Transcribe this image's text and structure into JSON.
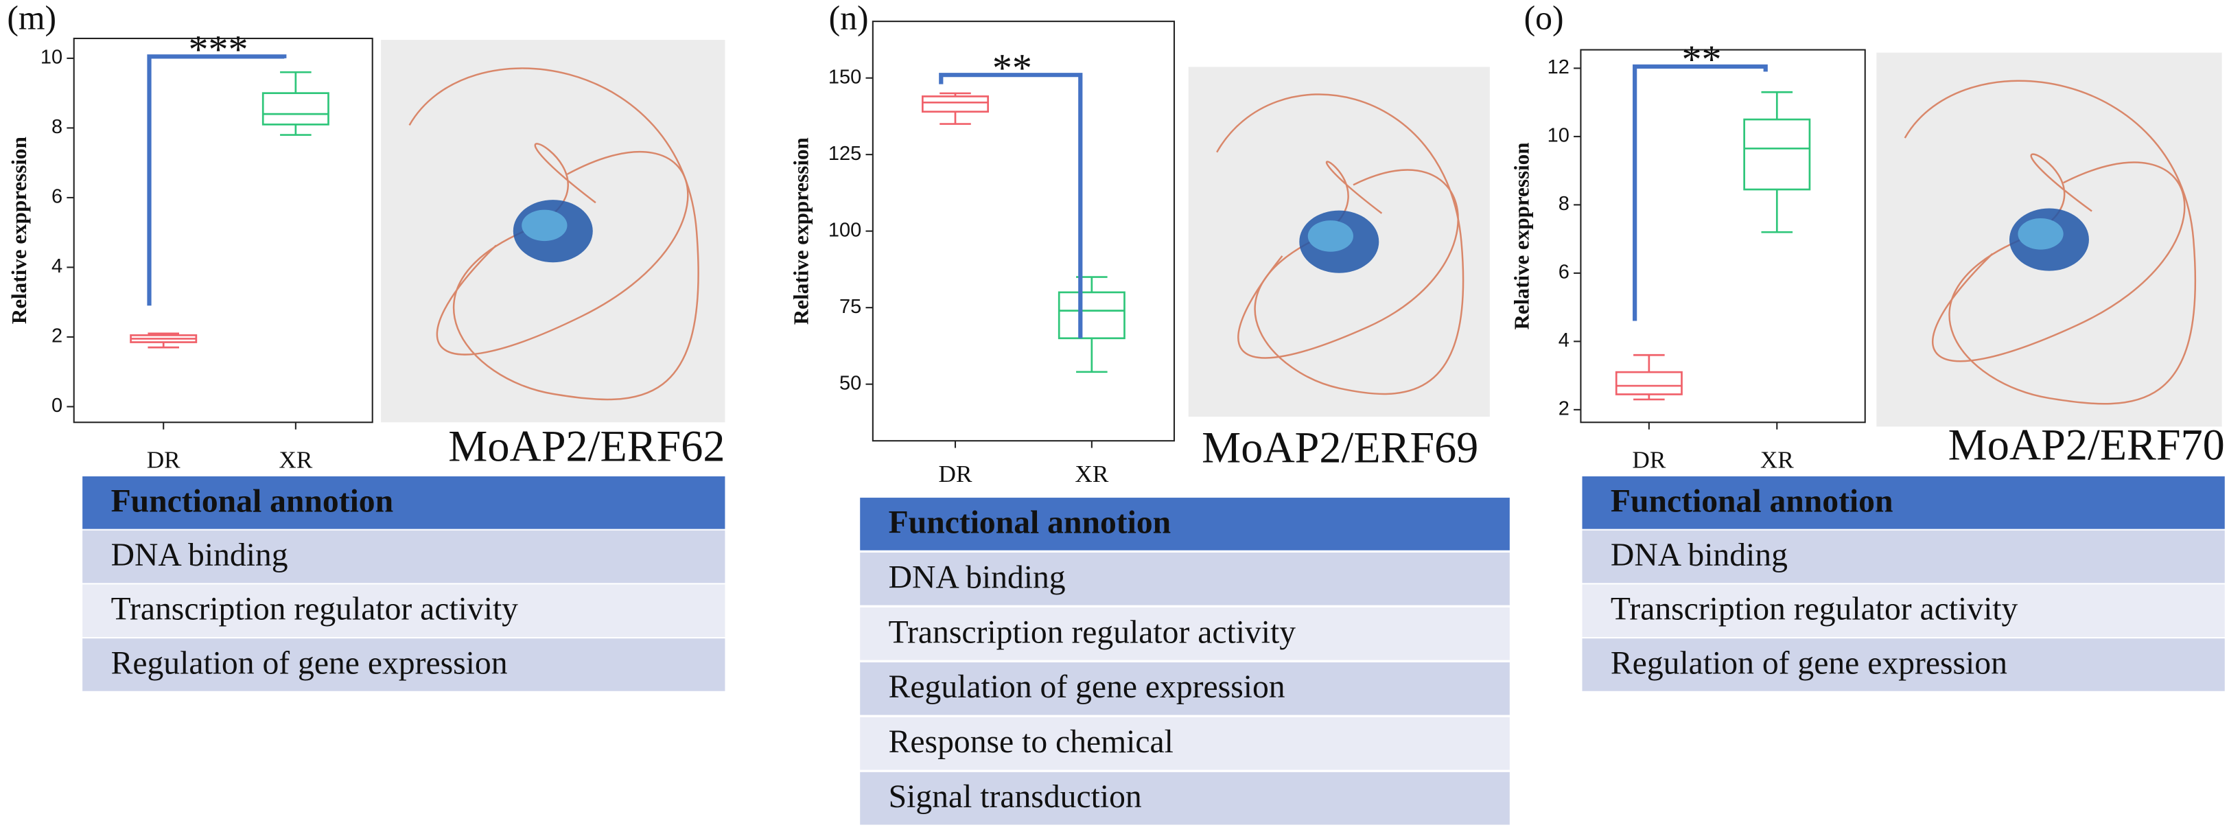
{
  "chart_data": [
    {
      "type": "box",
      "panel_label": "(m)",
      "ylabel": "Relative exppression",
      "categories": [
        "DR",
        "XR"
      ],
      "colors": [
        "#f0616a",
        "#2fc67a"
      ],
      "values": [
        {
          "min": 1.7,
          "q1": 1.85,
          "median": 1.95,
          "q3": 2.05,
          "max": 2.1
        },
        {
          "min": 7.8,
          "q1": 8.1,
          "median": 8.4,
          "q3": 9.0,
          "max": 9.6
        }
      ],
      "ylim": [
        -0.45,
        10.57
      ],
      "yticks": [
        0,
        2,
        4,
        6,
        8,
        10
      ],
      "bracket": {
        "label": "***",
        "start": 2.9,
        "top": 10.05,
        "end": 10.0
      }
    },
    {
      "type": "box",
      "panel_label": "(n)",
      "ylabel": "Relative exppression",
      "categories": [
        "DR",
        "XR"
      ],
      "colors": [
        "#f0616a",
        "#2fc67a"
      ],
      "values": [
        {
          "min": 135,
          "q1": 139,
          "median": 142,
          "q3": 144,
          "max": 145
        },
        {
          "min": 54,
          "q1": 65,
          "median": 74,
          "q3": 80,
          "max": 85
        }
      ],
      "ylim": [
        31.5,
        168.5
      ],
      "yticks": [
        50,
        75,
        100,
        125,
        150
      ],
      "bracket": {
        "label": "**",
        "start": 148,
        "top": 151,
        "end": 65
      }
    },
    {
      "type": "box",
      "panel_label": "(o)",
      "ylabel": "Relative exppression",
      "categories": [
        "DR",
        "XR"
      ],
      "colors": [
        "#f0616a",
        "#2fc67a"
      ],
      "values": [
        {
          "min": 2.3,
          "q1": 2.45,
          "median": 2.7,
          "q3": 3.1,
          "max": 3.6
        },
        {
          "min": 7.2,
          "q1": 8.45,
          "median": 9.65,
          "q3": 10.5,
          "max": 11.3
        }
      ],
      "ylim": [
        1.63,
        12.54
      ],
      "yticks": [
        2,
        4,
        6,
        8,
        10,
        12
      ],
      "bracket": {
        "label": "**",
        "start": 4.6,
        "top": 12.05,
        "end": 11.9
      }
    }
  ],
  "panels": [
    {
      "protein": "MoAP2/ERF62",
      "table": {
        "header": "Functional annotion",
        "rows": [
          "DNA binding",
          "Transcription regulator activity",
          "Regulation of gene expression"
        ]
      }
    },
    {
      "protein": "MoAP2/ERF69",
      "table": {
        "header": "Functional annotion",
        "rows": [
          "DNA binding",
          "Transcription regulator activity",
          "Regulation of gene expression",
          "Response to chemical",
          "Signal transduction"
        ]
      }
    },
    {
      "protein": "MoAP2/ERF70",
      "table": {
        "header": "Functional annotion",
        "rows": [
          "DNA binding",
          "Transcription regulator activity",
          "Regulation of gene expression"
        ]
      }
    }
  ]
}
